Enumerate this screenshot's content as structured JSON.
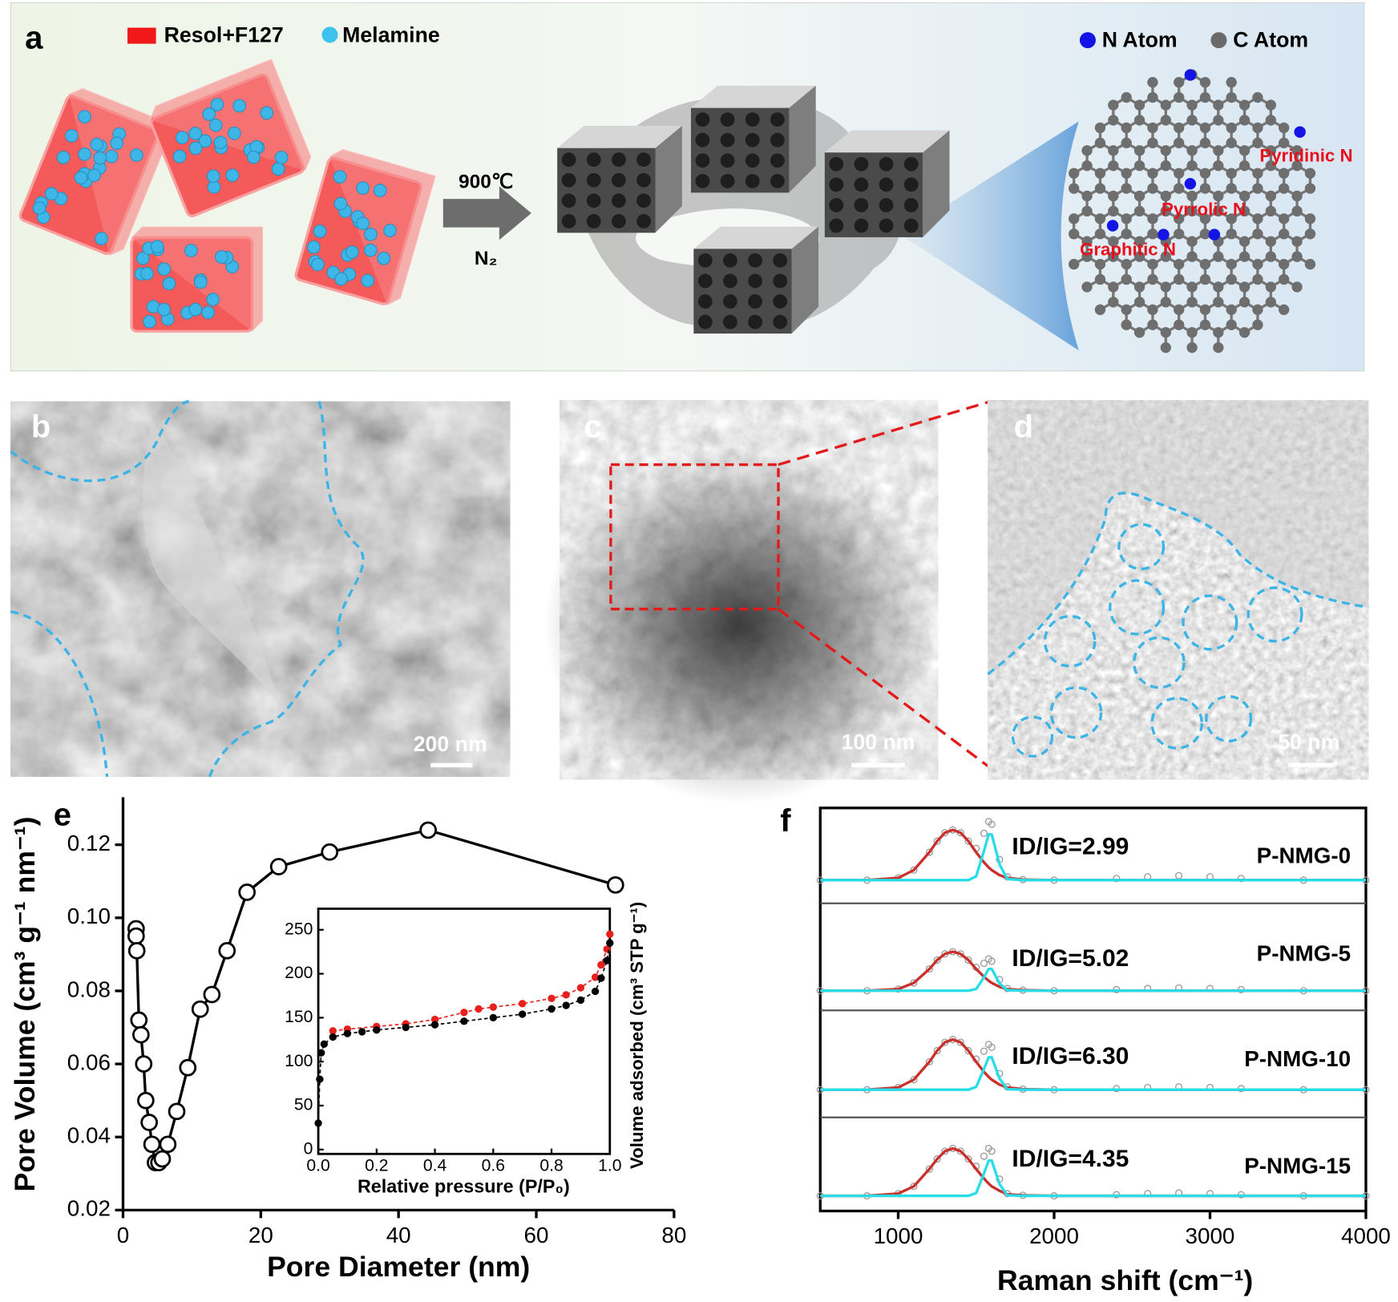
{
  "panels": {
    "a": {
      "label": "a",
      "legend": [
        "Resol+F127",
        "Melamine"
      ],
      "condition": {
        "temperature": "900℃",
        "gas": "N₂"
      },
      "atoms": [
        "N Atom",
        "C Atom"
      ],
      "nitrogen_types": [
        "Pyridinic N",
        "Pyrrolic N",
        "Graphitic N"
      ]
    },
    "b": {
      "label": "b",
      "scale_bar": "200 nm"
    },
    "c": {
      "label": "c",
      "scale_bar": "100 nm"
    },
    "d": {
      "label": "d",
      "scale_bar": "50 nm"
    }
  },
  "chart_data": [
    {
      "type": "line",
      "panel_label": "e",
      "x_label": "Pore Diameter (nm)",
      "y_label": "Pore Volume (cm³ g⁻¹ nm⁻¹)",
      "x": [
        1.9,
        1.9,
        2.0,
        2.3,
        2.6,
        3.0,
        3.3,
        3.8,
        4.2,
        4.7,
        5.2,
        5.7,
        6.5,
        7.8,
        9.4,
        11.2,
        12.9,
        15.1,
        18.0,
        22.6,
        30.0,
        44.3,
        71.5
      ],
      "values": [
        0.097,
        0.095,
        0.091,
        0.072,
        0.068,
        0.06,
        0.05,
        0.044,
        0.038,
        0.033,
        0.033,
        0.034,
        0.038,
        0.047,
        0.059,
        0.075,
        0.079,
        0.091,
        0.107,
        0.114,
        0.118,
        0.124,
        0.109
      ],
      "color": "#000000",
      "xlim": [
        0,
        80
      ],
      "xticks": [
        0,
        20,
        40,
        60,
        80
      ],
      "ylim": [
        0.02,
        0.133
      ],
      "yticks": [
        0.02,
        0.04,
        0.06,
        0.08,
        {
          "value": 0.1,
          "label": "0.10"
        },
        0.12
      ],
      "inset": {
        "type": "line",
        "x_label": "Relative pressure (P/P₀)",
        "y_label": "Volume adsorbed (cm³ STP g⁻¹)",
        "xlim": [
          0,
          1
        ],
        "xticks": [
          {
            "value": 0,
            "label": "0.0"
          },
          0.2,
          0.4,
          0.6,
          0.8,
          {
            "value": 1,
            "label": "1.0"
          }
        ],
        "ylim": [
          -5,
          274
        ],
        "yticks": [
          0,
          50,
          100,
          150,
          200,
          250
        ],
        "series": [
          {
            "color": "#e8201c",
            "x": [
              0.05,
              0.1,
              0.2,
              0.3,
              0.4,
              0.5,
              0.55,
              0.6,
              0.7,
              0.8,
              0.85,
              0.9,
              0.95,
              0.97,
              0.99,
              1.0
            ],
            "values": [
              135,
              137,
              140,
              143,
              148,
              156,
              160,
              162,
              166,
              172,
              176,
              184,
              196,
              210,
              228,
              245
            ]
          },
          {
            "color": "#000000",
            "x": [
              0.0,
              0.005,
              0.01,
              0.02,
              0.05,
              0.1,
              0.15,
              0.2,
              0.3,
              0.4,
              0.5,
              0.6,
              0.7,
              0.8,
              0.85,
              0.9,
              0.95,
              0.97,
              0.99,
              1.0
            ],
            "values": [
              30,
              80,
              110,
              120,
              128,
              132,
              134,
              136,
              139,
              142,
              146,
              150,
              154,
              160,
              164,
              170,
              180,
              195,
              215,
              235
            ]
          }
        ]
      }
    },
    {
      "type": "line",
      "panel_label": "f",
      "x_label": "Raman shift (cm⁻¹)",
      "xlim": [
        500,
        4000
      ],
      "xticks": [
        1000,
        2000,
        3000,
        4000
      ],
      "ylim": [
        0,
        1.15
      ],
      "x": [
        500,
        800,
        1000,
        1100,
        1200,
        1250,
        1300,
        1350,
        1400,
        1450,
        1500,
        1550,
        1580,
        1600,
        1650,
        1700,
        1800,
        2000,
        2400,
        2600,
        2800,
        3000,
        3200,
        3600,
        4000
      ],
      "samples": [
        {
          "name": "P-NMG-0",
          "annotation": "ID/IG=2.99",
          "series": [
            {
              "color": "#9a9a9a",
              "marker": "circle",
              "values": [
                0,
                0,
                0.04,
                0.18,
                0.5,
                0.7,
                0.85,
                0.9,
                0.85,
                0.7,
                0.57,
                0.84,
                1.05,
                1.0,
                0.37,
                0.06,
                0.01,
                0,
                0.03,
                0.06,
                0.08,
                0.06,
                0.03,
                0,
                0
              ]
            },
            {
              "color": "#c9302c",
              "values": [
                0,
                0,
                0.04,
                0.18,
                0.5,
                0.7,
                0.85,
                0.9,
                0.85,
                0.7,
                0.5,
                0.32,
                0.23,
                0.18,
                0.09,
                0.04,
                0.01,
                0,
                0,
                0,
                0,
                0,
                0,
                0,
                0
              ]
            },
            {
              "color": "#28dde8",
              "values": [
                0,
                0,
                0,
                0,
                0,
                0,
                0,
                0,
                0,
                0,
                0.07,
                0.52,
                0.82,
                0.82,
                0.28,
                0.02,
                0,
                0,
                0,
                0,
                0,
                0,
                0,
                0,
                0
              ]
            }
          ]
        },
        {
          "name": "P-NMG-5",
          "annotation": "ID/IG=5.02",
          "series": [
            {
              "color": "#9a9a9a",
              "marker": "circle",
              "values": [
                0,
                0,
                0.03,
                0.14,
                0.39,
                0.55,
                0.66,
                0.7,
                0.66,
                0.55,
                0.42,
                0.49,
                0.57,
                0.53,
                0.2,
                0.04,
                0.01,
                0,
                0.02,
                0.04,
                0.05,
                0.04,
                0.02,
                0,
                0
              ]
            },
            {
              "color": "#c9302c",
              "values": [
                0,
                0,
                0.03,
                0.14,
                0.39,
                0.55,
                0.66,
                0.7,
                0.66,
                0.55,
                0.39,
                0.25,
                0.18,
                0.14,
                0.07,
                0.03,
                0.01,
                0,
                0,
                0,
                0,
                0,
                0,
                0,
                0
              ]
            },
            {
              "color": "#28dde8",
              "values": [
                0,
                0,
                0,
                0,
                0,
                0,
                0,
                0,
                0,
                0,
                0.03,
                0.24,
                0.39,
                0.39,
                0.13,
                0.01,
                0,
                0,
                0,
                0,
                0,
                0,
                0,
                0,
                0
              ]
            }
          ]
        },
        {
          "name": "P-NMG-10",
          "annotation": "ID/IG=6.30",
          "series": [
            {
              "color": "#9a9a9a",
              "marker": "circle",
              "values": [
                0,
                0,
                0.04,
                0.18,
                0.5,
                0.7,
                0.85,
                0.9,
                0.85,
                0.7,
                0.55,
                0.69,
                0.81,
                0.76,
                0.29,
                0.05,
                0.01,
                0,
                0.02,
                0.04,
                0.05,
                0.04,
                0.02,
                0,
                0
              ]
            },
            {
              "color": "#c9302c",
              "values": [
                0,
                0,
                0.04,
                0.18,
                0.5,
                0.7,
                0.85,
                0.9,
                0.85,
                0.7,
                0.5,
                0.32,
                0.23,
                0.18,
                0.09,
                0.04,
                0.01,
                0,
                0,
                0,
                0,
                0,
                0,
                0,
                0
              ]
            },
            {
              "color": "#28dde8",
              "values": [
                0,
                0,
                0,
                0,
                0,
                0,
                0,
                0,
                0,
                0,
                0.05,
                0.37,
                0.58,
                0.58,
                0.2,
                0.01,
                0,
                0,
                0,
                0,
                0,
                0,
                0,
                0,
                0
              ]
            }
          ]
        },
        {
          "name": "P-NMG-15",
          "annotation": "ID/IG=4.35",
          "series": [
            {
              "color": "#9a9a9a",
              "marker": "circle",
              "values": [
                0,
                0,
                0.04,
                0.17,
                0.48,
                0.66,
                0.8,
                0.85,
                0.8,
                0.66,
                0.53,
                0.71,
                0.85,
                0.8,
                0.3,
                0.04,
                0.01,
                0,
                0.02,
                0.04,
                0.05,
                0.04,
                0.02,
                0,
                0
              ]
            },
            {
              "color": "#c9302c",
              "values": [
                0,
                0,
                0.04,
                0.17,
                0.48,
                0.66,
                0.8,
                0.85,
                0.8,
                0.66,
                0.48,
                0.31,
                0.22,
                0.17,
                0.09,
                0.03,
                0.01,
                0,
                0,
                0,
                0,
                0,
                0,
                0,
                0
              ]
            },
            {
              "color": "#28dde8",
              "values": [
                0,
                0,
                0,
                0,
                0,
                0,
                0,
                0,
                0,
                0,
                0.05,
                0.4,
                0.63,
                0.63,
                0.21,
                0.01,
                0,
                0,
                0,
                0,
                0,
                0,
                0,
                0,
                0
              ]
            }
          ]
        }
      ]
    }
  ]
}
